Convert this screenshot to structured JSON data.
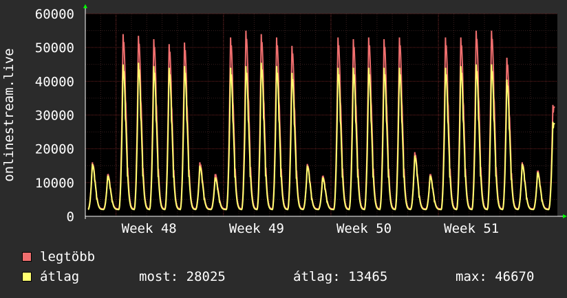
{
  "chart_data": {
    "type": "line",
    "ylabel": "onlinestream.live",
    "ylim": [
      0,
      60000
    ],
    "y_ticks": [
      "0",
      "10000",
      "20000",
      "30000",
      "40000",
      "50000",
      "60000"
    ],
    "x_ticks": [
      "Week 48",
      "Week 49",
      "Week 50",
      "Week 51"
    ],
    "grid": true,
    "series": [
      {
        "name": "legtöbb",
        "color": "#f06f6f",
        "daily_peaks": [
          16000,
          12500,
          54000,
          53500,
          52500,
          51000,
          51500,
          16000,
          12500,
          53000,
          55000,
          54000,
          53000,
          50500,
          15500,
          12000,
          53000,
          52500,
          53000,
          52500,
          53000,
          19000,
          12500,
          53000,
          53000,
          55000,
          55000,
          47000,
          16000,
          13500,
          33000
        ]
      },
      {
        "name": "átlag",
        "color": "#ffff70",
        "daily_peaks": [
          15500,
          12000,
          45000,
          45500,
          44500,
          44000,
          44500,
          15000,
          11500,
          44000,
          44500,
          45500,
          44500,
          42500,
          15000,
          11500,
          44000,
          44000,
          44000,
          44000,
          44000,
          18000,
          12000,
          44000,
          44500,
          45000,
          45000,
          40500,
          15500,
          13000,
          28000
        ]
      }
    ]
  },
  "legend": {
    "max_label": "legtöbb",
    "avg_label": "átlag",
    "max_color": "#f06f6f",
    "avg_color": "#ffff70"
  },
  "stats": {
    "current": "most: 28025",
    "average": "átlag: 13465",
    "maximum": "max: 46670"
  }
}
